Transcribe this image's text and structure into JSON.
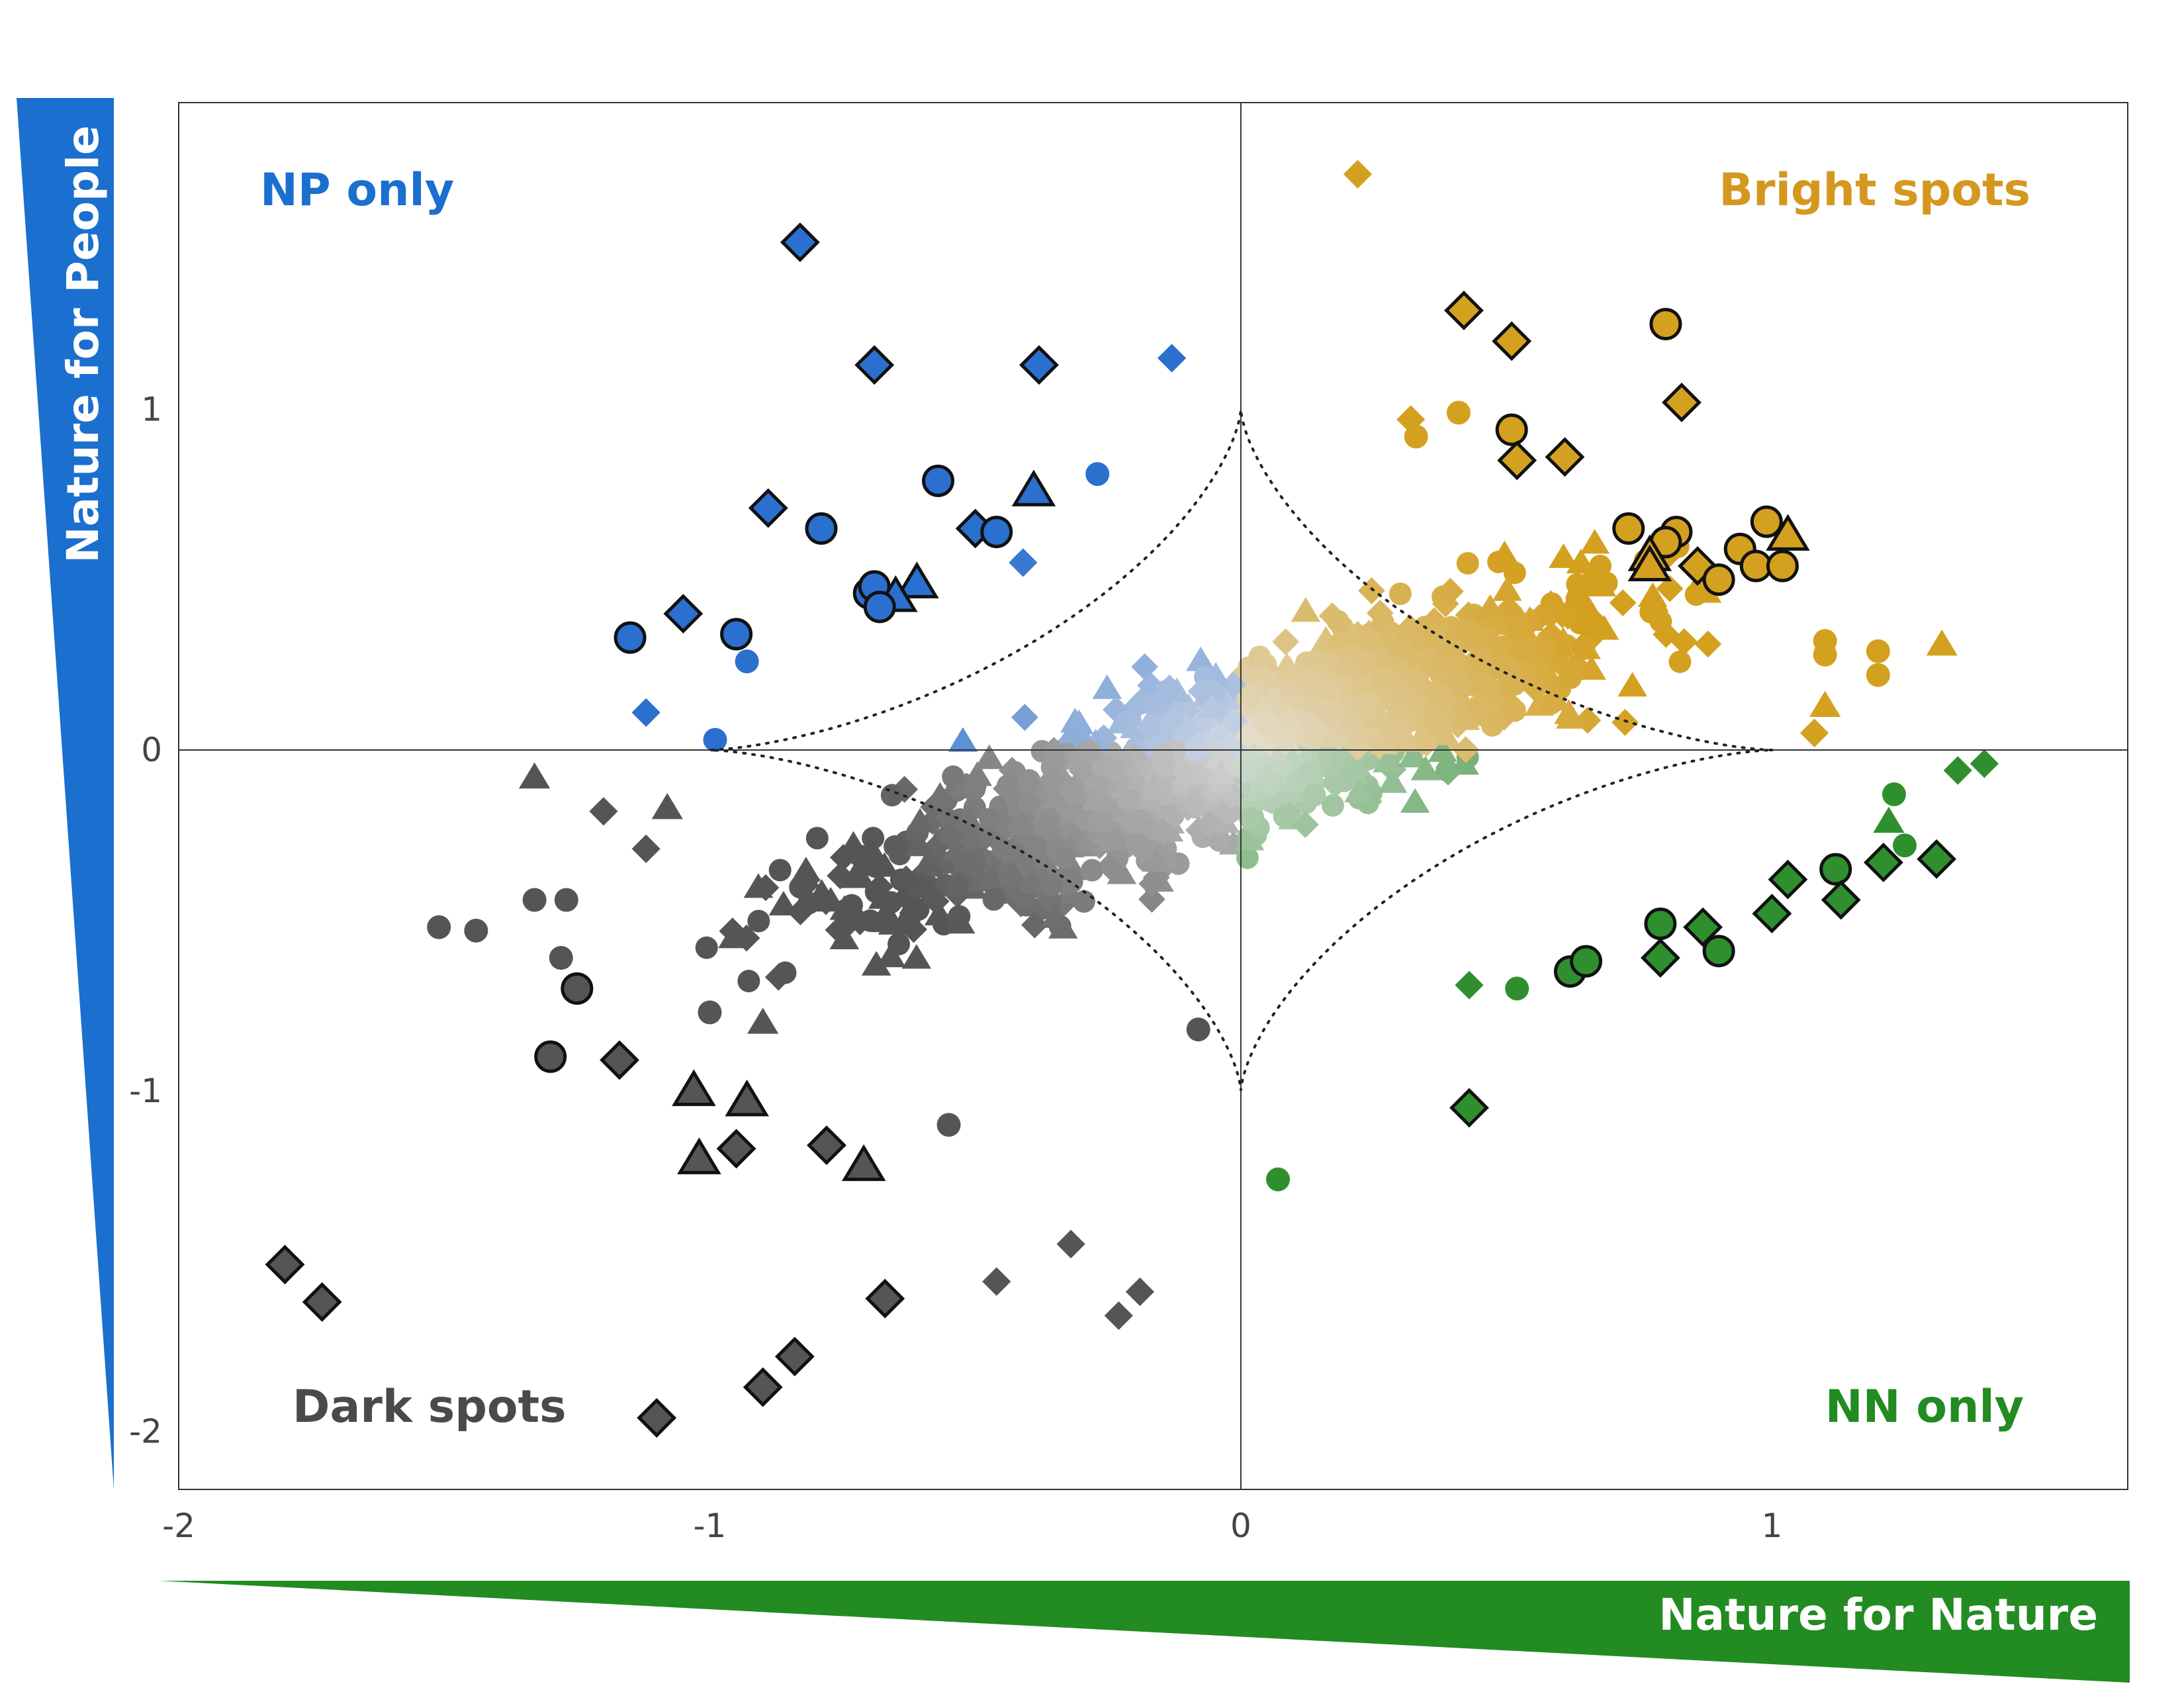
{
  "chart_data": {
    "type": "scatter",
    "xlabel": "Nature for Nature",
    "ylabel": "Nature for People",
    "xlim": [
      -2,
      1.67
    ],
    "ylim": [
      -2.17,
      1.9
    ],
    "x_ticks": [
      "-2",
      "-1",
      "0",
      "1"
    ],
    "y_ticks": [
      "1",
      "0",
      "-1",
      "-2"
    ],
    "x_tick_values": [
      -2,
      -1,
      0,
      1
    ],
    "y_tick_values": [
      1,
      0,
      -1,
      -2
    ],
    "grid": false,
    "reference_lines": [
      "x = 0",
      "y = 0",
      "dotted astroid-shaped threshold curves around the origin"
    ],
    "quadrant_labels": {
      "top_left": "NP only",
      "top_right": "Bright spots",
      "bottom_left": "Dark spots",
      "bottom_right": "NN only"
    },
    "colors": {
      "np_only": "#2b6fcf",
      "bright_spots": "#d4a020",
      "dark_spots": "#555555",
      "nn_only": "#2f8f2f",
      "axis_nn_wedge": "#228b22",
      "axis_np_wedge": "#1a6fcf"
    },
    "marker_shapes": [
      "circle",
      "diamond",
      "triangle"
    ],
    "highlighted_points": [
      {
        "x": -0.83,
        "y": 1.49,
        "shape": "diamond"
      },
      {
        "x": -0.69,
        "y": 1.13,
        "shape": "diamond"
      },
      {
        "x": -0.38,
        "y": 1.13,
        "shape": "diamond"
      },
      {
        "x": -0.57,
        "y": 0.79,
        "shape": "circle"
      },
      {
        "x": -0.39,
        "y": 0.76,
        "shape": "triangle"
      },
      {
        "x": -0.89,
        "y": 0.71,
        "shape": "diamond"
      },
      {
        "x": -0.79,
        "y": 0.65,
        "shape": "circle"
      },
      {
        "x": -0.5,
        "y": 0.65,
        "shape": "diamond"
      },
      {
        "x": -0.46,
        "y": 0.64,
        "shape": "circle"
      },
      {
        "x": -0.61,
        "y": 0.49,
        "shape": "triangle"
      },
      {
        "x": -0.7,
        "y": 0.46,
        "shape": "circle"
      },
      {
        "x": -0.69,
        "y": 0.48,
        "shape": "circle"
      },
      {
        "x": -0.65,
        "y": 0.45,
        "shape": "triangle"
      },
      {
        "x": -0.68,
        "y": 0.42,
        "shape": "circle"
      },
      {
        "x": -1.05,
        "y": 0.4,
        "shape": "diamond"
      },
      {
        "x": -0.95,
        "y": 0.34,
        "shape": "circle"
      },
      {
        "x": -1.15,
        "y": 0.33,
        "shape": "circle"
      },
      {
        "x": 0.42,
        "y": 1.29,
        "shape": "diamond"
      },
      {
        "x": 0.51,
        "y": 1.2,
        "shape": "diamond"
      },
      {
        "x": 0.8,
        "y": 1.25,
        "shape": "circle"
      },
      {
        "x": 0.83,
        "y": 1.02,
        "shape": "diamond"
      },
      {
        "x": 0.51,
        "y": 0.94,
        "shape": "circle"
      },
      {
        "x": 0.52,
        "y": 0.85,
        "shape": "diamond"
      },
      {
        "x": 0.61,
        "y": 0.86,
        "shape": "diamond"
      },
      {
        "x": 0.73,
        "y": 0.65,
        "shape": "circle"
      },
      {
        "x": 0.82,
        "y": 0.64,
        "shape": "circle"
      },
      {
        "x": 0.8,
        "y": 0.61,
        "shape": "circle"
      },
      {
        "x": 0.77,
        "y": 0.57,
        "shape": "triangle"
      },
      {
        "x": 0.77,
        "y": 0.54,
        "shape": "triangle"
      },
      {
        "x": 0.86,
        "y": 0.54,
        "shape": "diamond"
      },
      {
        "x": 0.9,
        "y": 0.5,
        "shape": "circle"
      },
      {
        "x": 0.94,
        "y": 0.59,
        "shape": "circle"
      },
      {
        "x": 0.97,
        "y": 0.54,
        "shape": "circle"
      },
      {
        "x": 0.99,
        "y": 0.67,
        "shape": "circle"
      },
      {
        "x": 1.02,
        "y": 0.54,
        "shape": "circle"
      },
      {
        "x": 1.03,
        "y": 0.63,
        "shape": "triangle"
      },
      {
        "x": -1.8,
        "y": -1.51,
        "shape": "diamond"
      },
      {
        "x": -1.73,
        "y": -1.62,
        "shape": "diamond"
      },
      {
        "x": -1.25,
        "y": -0.7,
        "shape": "circle"
      },
      {
        "x": -1.3,
        "y": -0.9,
        "shape": "circle"
      },
      {
        "x": -1.17,
        "y": -0.91,
        "shape": "diamond"
      },
      {
        "x": -1.03,
        "y": -1.0,
        "shape": "triangle"
      },
      {
        "x": -0.93,
        "y": -1.03,
        "shape": "triangle"
      },
      {
        "x": -1.02,
        "y": -1.2,
        "shape": "triangle"
      },
      {
        "x": -0.95,
        "y": -1.17,
        "shape": "diamond"
      },
      {
        "x": -0.78,
        "y": -1.16,
        "shape": "diamond"
      },
      {
        "x": -0.71,
        "y": -1.22,
        "shape": "triangle"
      },
      {
        "x": -0.67,
        "y": -1.61,
        "shape": "diamond"
      },
      {
        "x": -0.84,
        "y": -1.78,
        "shape": "diamond"
      },
      {
        "x": -0.9,
        "y": -1.87,
        "shape": "diamond"
      },
      {
        "x": -1.1,
        "y": -1.96,
        "shape": "diamond"
      },
      {
        "x": 0.43,
        "y": -1.05,
        "shape": "diamond"
      },
      {
        "x": 0.62,
        "y": -0.65,
        "shape": "circle"
      },
      {
        "x": 0.65,
        "y": -0.62,
        "shape": "circle"
      },
      {
        "x": 0.79,
        "y": -0.51,
        "shape": "circle"
      },
      {
        "x": 0.79,
        "y": -0.61,
        "shape": "diamond"
      },
      {
        "x": 0.87,
        "y": -0.52,
        "shape": "diamond"
      },
      {
        "x": 0.9,
        "y": -0.59,
        "shape": "circle"
      },
      {
        "x": 1.0,
        "y": -0.48,
        "shape": "diamond"
      },
      {
        "x": 1.03,
        "y": -0.38,
        "shape": "diamond"
      },
      {
        "x": 1.12,
        "y": -0.35,
        "shape": "circle"
      },
      {
        "x": 1.13,
        "y": -0.44,
        "shape": "diamond"
      },
      {
        "x": 1.21,
        "y": -0.33,
        "shape": "diamond"
      },
      {
        "x": 1.31,
        "y": -0.32,
        "shape": "diamond"
      }
    ],
    "background_points": [
      {
        "x": 0.22,
        "y": 1.69,
        "shape": "diamond"
      },
      {
        "x": -0.13,
        "y": 1.15,
        "shape": "diamond"
      },
      {
        "x": -0.27,
        "y": 0.81,
        "shape": "circle"
      },
      {
        "x": -1.12,
        "y": 0.11,
        "shape": "diamond"
      },
      {
        "x": -0.99,
        "y": 0.03,
        "shape": "circle"
      },
      {
        "x": -0.93,
        "y": 0.26,
        "shape": "circle"
      },
      {
        "x": -0.41,
        "y": 0.55,
        "shape": "diamond"
      },
      {
        "x": 0.41,
        "y": 0.99,
        "shape": "circle"
      },
      {
        "x": 0.32,
        "y": 0.97,
        "shape": "diamond"
      },
      {
        "x": 0.33,
        "y": 0.92,
        "shape": "circle"
      },
      {
        "x": 1.1,
        "y": 0.32,
        "shape": "circle"
      },
      {
        "x": 1.1,
        "y": 0.28,
        "shape": "circle"
      },
      {
        "x": 1.2,
        "y": 0.29,
        "shape": "circle"
      },
      {
        "x": 1.2,
        "y": 0.22,
        "shape": "circle"
      },
      {
        "x": 1.32,
        "y": 0.31,
        "shape": "triangle"
      },
      {
        "x": 1.1,
        "y": 0.13,
        "shape": "triangle"
      },
      {
        "x": 1.08,
        "y": 0.05,
        "shape": "diamond"
      },
      {
        "x": 1.4,
        "y": -0.04,
        "shape": "diamond"
      },
      {
        "x": 1.35,
        "y": -0.06,
        "shape": "diamond"
      },
      {
        "x": 1.23,
        "y": -0.13,
        "shape": "circle"
      },
      {
        "x": 1.22,
        "y": -0.21,
        "shape": "triangle"
      },
      {
        "x": 1.25,
        "y": -0.28,
        "shape": "circle"
      },
      {
        "x": -1.33,
        "y": -0.08,
        "shape": "triangle"
      },
      {
        "x": -1.2,
        "y": -0.18,
        "shape": "diamond"
      },
      {
        "x": -1.08,
        "y": -0.17,
        "shape": "triangle"
      },
      {
        "x": -1.51,
        "y": -0.52,
        "shape": "circle"
      },
      {
        "x": -1.44,
        "y": -0.53,
        "shape": "circle"
      },
      {
        "x": -1.33,
        "y": -0.44,
        "shape": "circle"
      },
      {
        "x": -1.27,
        "y": -0.44,
        "shape": "circle"
      },
      {
        "x": -1.28,
        "y": -0.61,
        "shape": "circle"
      },
      {
        "x": -1.12,
        "y": -0.29,
        "shape": "diamond"
      },
      {
        "x": -1.0,
        "y": -0.77,
        "shape": "circle"
      },
      {
        "x": -0.9,
        "y": -0.8,
        "shape": "triangle"
      },
      {
        "x": -0.55,
        "y": -1.1,
        "shape": "circle"
      },
      {
        "x": -0.46,
        "y": -1.56,
        "shape": "diamond"
      },
      {
        "x": -0.32,
        "y": -1.45,
        "shape": "diamond"
      },
      {
        "x": -0.23,
        "y": -1.66,
        "shape": "diamond"
      },
      {
        "x": -0.19,
        "y": -1.59,
        "shape": "diamond"
      },
      {
        "x": -0.08,
        "y": -0.82,
        "shape": "circle"
      },
      {
        "x": 0.07,
        "y": -1.26,
        "shape": "circle"
      },
      {
        "x": 0.52,
        "y": -0.7,
        "shape": "circle"
      },
      {
        "x": 0.43,
        "y": -0.69,
        "shape": "diamond"
      }
    ],
    "cloud_note": "Approx. 1,400 additional smaller points fill the four quadrants, colour-blended toward light grey near the origin"
  }
}
